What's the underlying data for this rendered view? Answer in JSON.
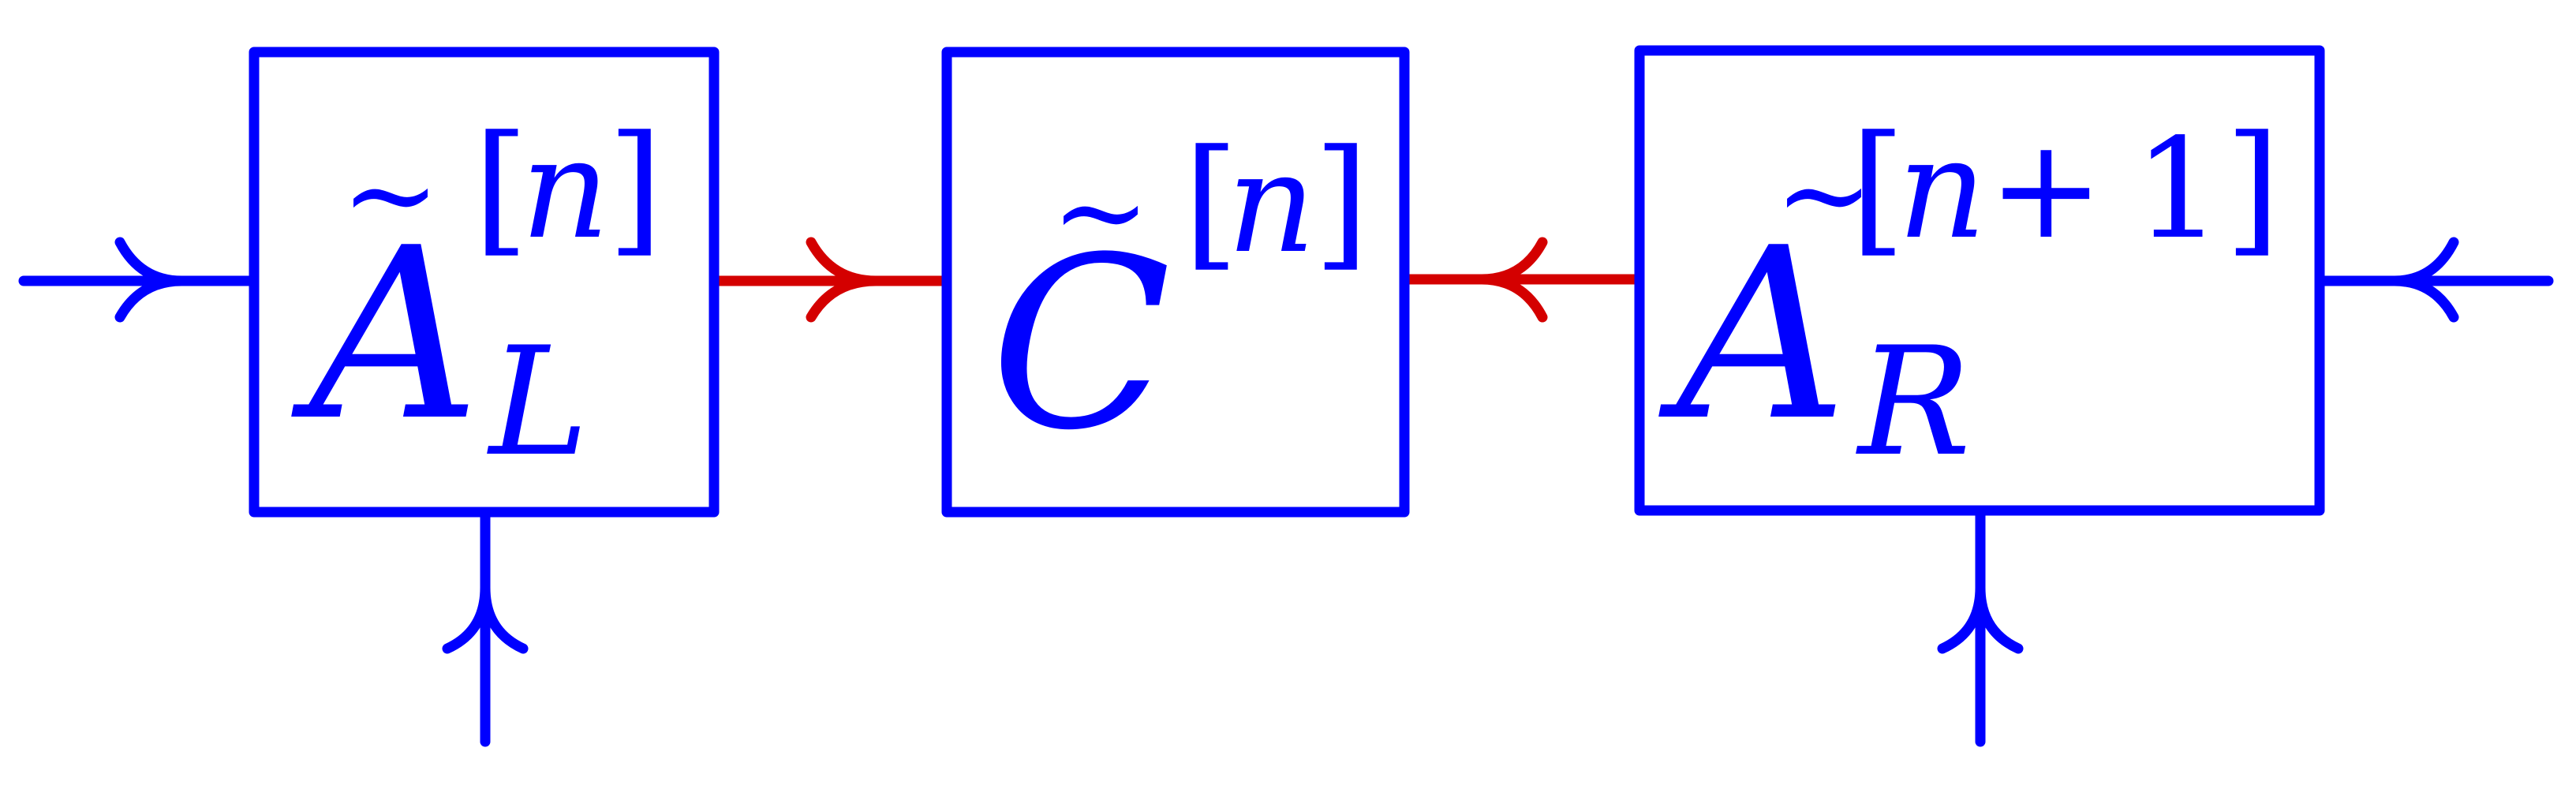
{
  "colors": {
    "blue": "#0000ff",
    "red": "#d40000",
    "background": "#ffffff"
  },
  "nodes": [
    {
      "id": "a-left",
      "base": "A",
      "tilde": true,
      "subscript": "L",
      "superscript": "[n]"
    },
    {
      "id": "c-center",
      "base": "C",
      "tilde": true,
      "subscript": "",
      "superscript": "[n]"
    },
    {
      "id": "a-right",
      "base": "A",
      "tilde": true,
      "subscript": "R",
      "superscript": "[n+1]"
    }
  ],
  "edges": [
    {
      "id": "left-input",
      "color": "blue",
      "direction": "into a-left"
    },
    {
      "id": "a-left-physical",
      "color": "blue",
      "direction": "into a-left from below"
    },
    {
      "id": "a-left-to-c",
      "color": "red",
      "direction": "a-left to c-center"
    },
    {
      "id": "a-right-to-c",
      "color": "red",
      "direction": "a-right to c-center"
    },
    {
      "id": "a-right-physical",
      "color": "blue",
      "direction": "into a-right from below"
    },
    {
      "id": "right-output",
      "color": "blue",
      "direction": "into a-right from right"
    }
  ],
  "labels": {
    "tilde": "~",
    "bracket_open": "[",
    "bracket_close": "]",
    "n": "n",
    "plus": "+",
    "one": "1"
  }
}
